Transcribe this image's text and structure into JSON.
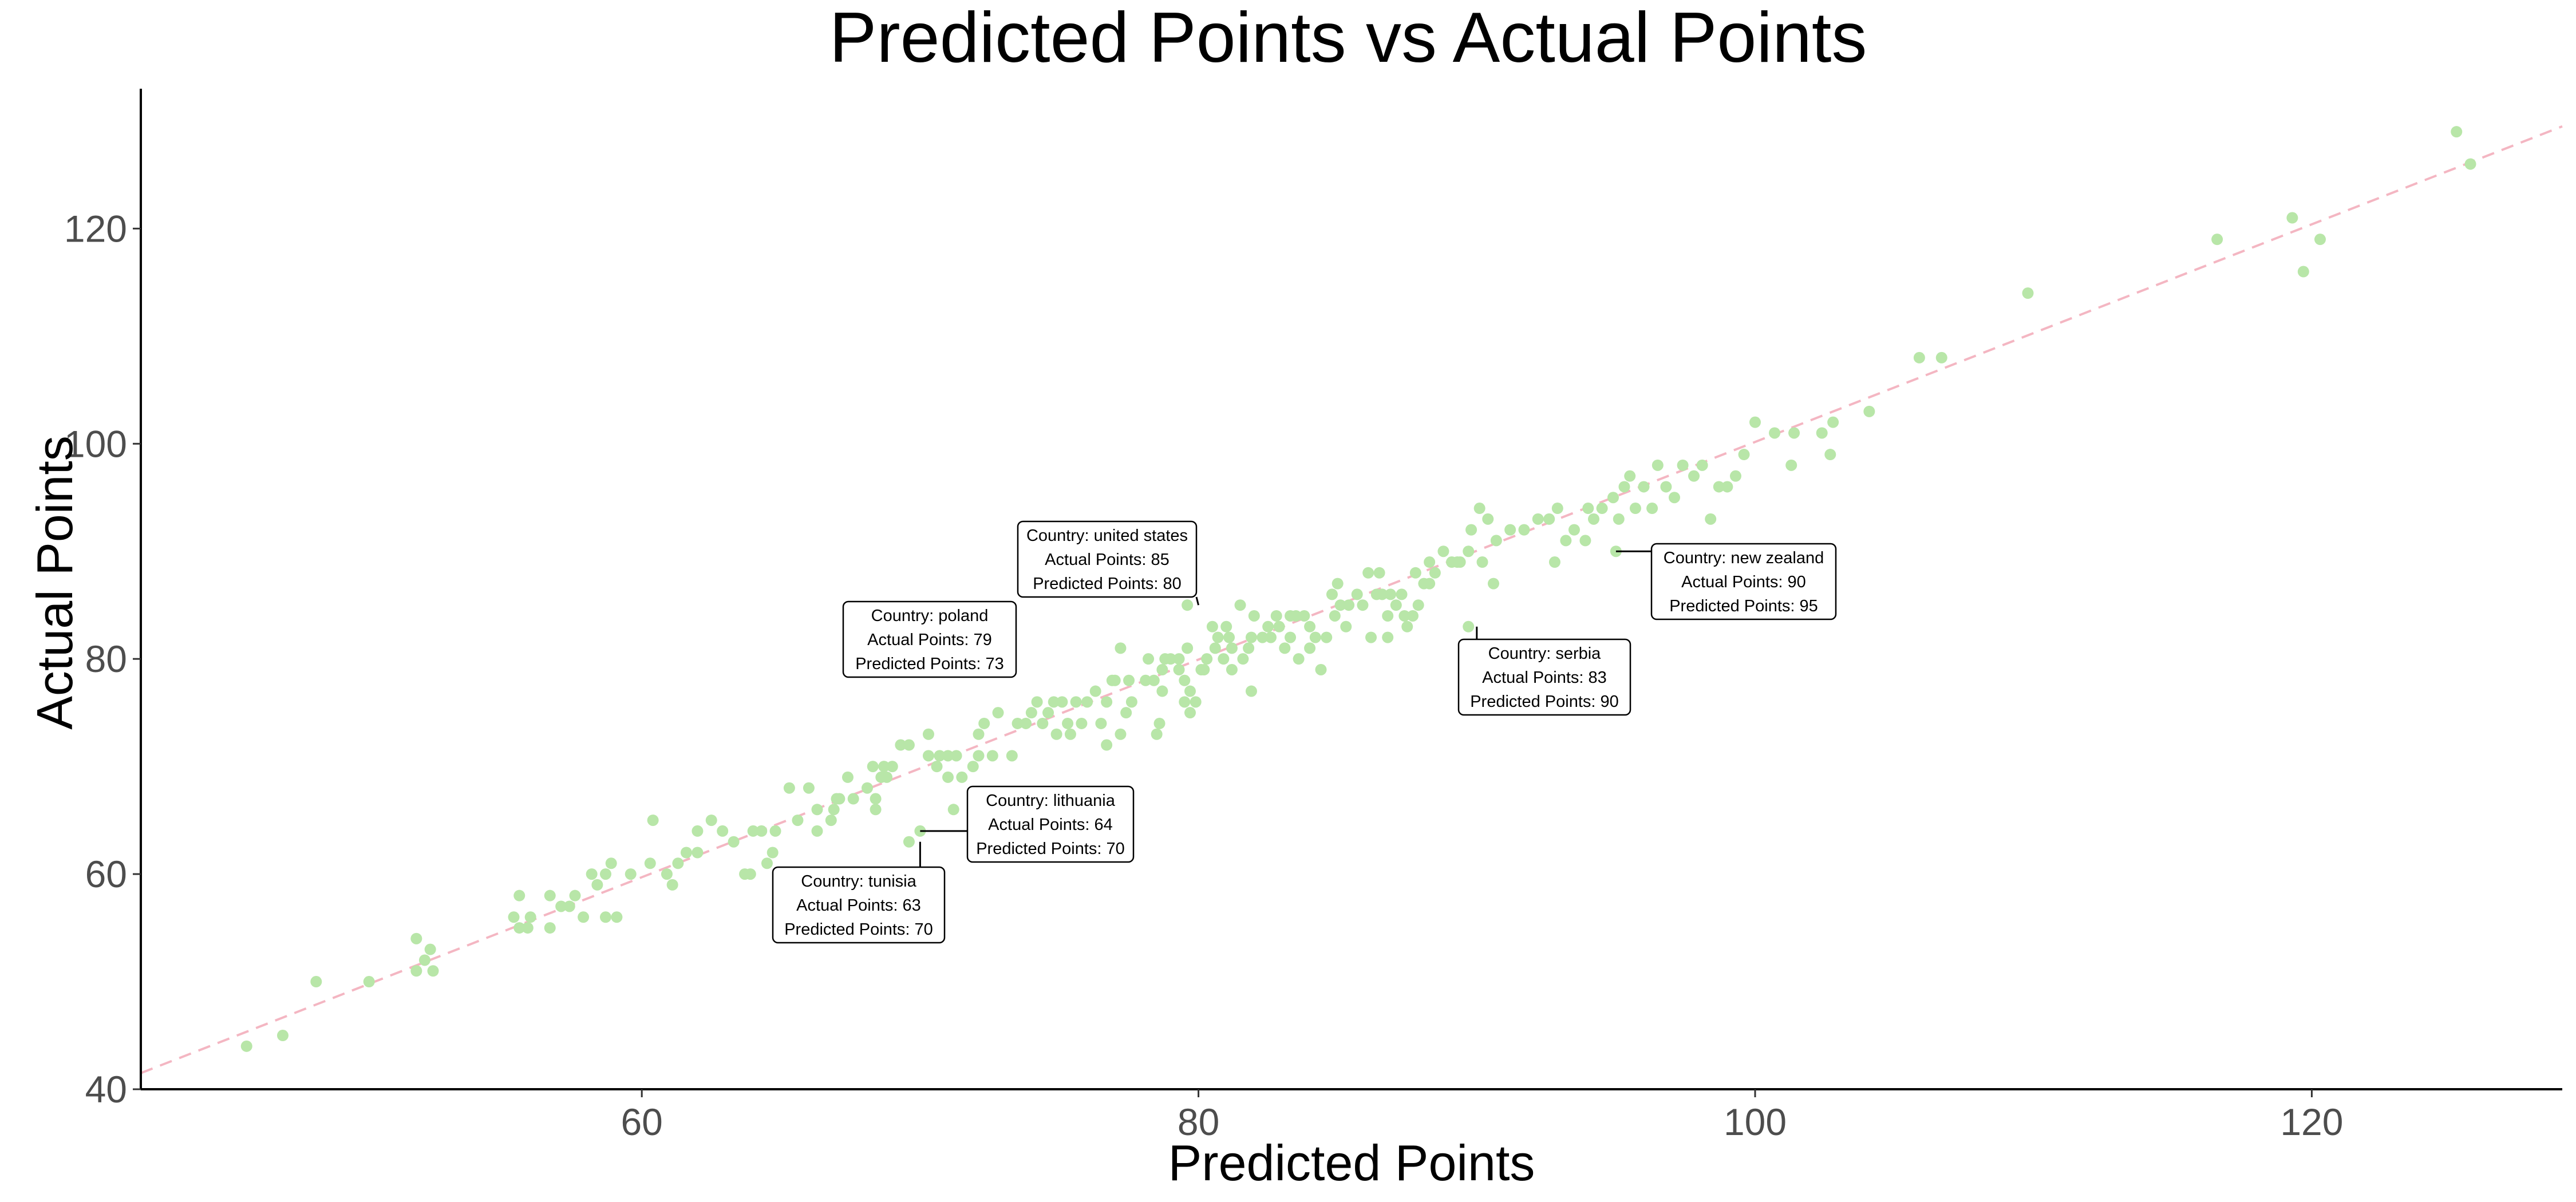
{
  "chart_data": {
    "type": "scatter",
    "title": "Predicted Points vs Actual Points",
    "xlabel": "Predicted Points",
    "ylabel": "Actual Points",
    "xlim": [
      42,
      129
    ],
    "ylim": [
      40,
      133
    ],
    "x_ticks": [
      60,
      80,
      100,
      120
    ],
    "y_ticks": [
      40,
      60,
      80,
      100,
      120
    ],
    "grid": false,
    "point_color": "#b8e6a8",
    "reference_line": {
      "style": "dashed",
      "color": "#f4b6c2",
      "x": [
        42,
        129
      ],
      "y": [
        41.5,
        129.5
      ]
    },
    "points": [
      [
        45.8,
        44
      ],
      [
        47.1,
        45
      ],
      [
        48.3,
        50
      ],
      [
        50.2,
        50
      ],
      [
        51.9,
        51
      ],
      [
        51.9,
        54
      ],
      [
        52.2,
        52
      ],
      [
        52.4,
        53
      ],
      [
        52.5,
        51
      ],
      [
        55.4,
        56
      ],
      [
        55.6,
        58
      ],
      [
        55.6,
        55
      ],
      [
        55.9,
        55
      ],
      [
        56,
        56
      ],
      [
        56.7,
        55
      ],
      [
        56.7,
        58
      ],
      [
        57.1,
        57
      ],
      [
        57.4,
        57
      ],
      [
        57.6,
        58
      ],
      [
        57.9,
        56
      ],
      [
        58.2,
        60
      ],
      [
        58.4,
        59
      ],
      [
        58.7,
        56
      ],
      [
        58.7,
        60
      ],
      [
        58.9,
        61
      ],
      [
        59.1,
        56
      ],
      [
        59.6,
        60
      ],
      [
        60.3,
        61
      ],
      [
        60.4,
        65
      ],
      [
        60.9,
        60
      ],
      [
        61.1,
        59
      ],
      [
        61.3,
        61
      ],
      [
        61.6,
        62
      ],
      [
        62,
        62
      ],
      [
        62,
        64
      ],
      [
        62.5,
        65
      ],
      [
        62.9,
        64
      ],
      [
        63.3,
        63
      ],
      [
        63.7,
        60
      ],
      [
        63.9,
        60
      ],
      [
        64,
        64
      ],
      [
        64.3,
        64
      ],
      [
        64.5,
        61
      ],
      [
        64.7,
        62
      ],
      [
        64.8,
        64
      ],
      [
        65.3,
        68
      ],
      [
        65.6,
        65
      ],
      [
        66,
        68
      ],
      [
        66.3,
        66
      ],
      [
        66.3,
        64
      ],
      [
        66.8,
        65
      ],
      [
        66.9,
        66
      ],
      [
        67,
        67
      ],
      [
        67.1,
        67
      ],
      [
        67.4,
        69
      ],
      [
        67.6,
        67
      ],
      [
        68.1,
        68
      ],
      [
        68.3,
        70
      ],
      [
        68.4,
        66
      ],
      [
        68.4,
        67
      ],
      [
        68.6,
        69
      ],
      [
        68.7,
        70
      ],
      [
        68.8,
        69
      ],
      [
        69,
        70
      ],
      [
        69.3,
        72
      ],
      [
        69.6,
        72
      ],
      [
        70.3,
        71
      ],
      [
        70.3,
        73
      ],
      [
        70.6,
        70
      ],
      [
        70.7,
        71
      ],
      [
        71,
        69
      ],
      [
        71,
        71
      ],
      [
        71.2,
        66
      ],
      [
        71.3,
        71
      ],
      [
        71.5,
        69
      ],
      [
        71.9,
        70
      ],
      [
        72.1,
        71
      ],
      [
        72.1,
        73
      ],
      [
        72.3,
        74
      ],
      [
        72.6,
        71
      ],
      [
        72.8,
        75
      ],
      [
        73.2,
        79
      ],
      [
        73.3,
        71
      ],
      [
        73.5,
        74
      ],
      [
        73.8,
        74
      ],
      [
        74,
        75
      ],
      [
        74.2,
        76
      ],
      [
        74.4,
        74
      ],
      [
        74.6,
        75
      ],
      [
        74.8,
        76
      ],
      [
        74.9,
        73
      ],
      [
        75.1,
        76
      ],
      [
        75.3,
        74
      ],
      [
        75.4,
        73
      ],
      [
        75.6,
        76
      ],
      [
        75.8,
        74
      ],
      [
        76,
        76
      ],
      [
        76.3,
        77
      ],
      [
        76.5,
        74
      ],
      [
        76.7,
        72
      ],
      [
        76.7,
        76
      ],
      [
        76.9,
        78
      ],
      [
        77,
        78
      ],
      [
        77.2,
        81
      ],
      [
        77.2,
        73
      ],
      [
        77.4,
        75
      ],
      [
        77.5,
        78
      ],
      [
        77.6,
        76
      ],
      [
        78.1,
        78
      ],
      [
        78.2,
        80
      ],
      [
        78.4,
        78
      ],
      [
        78.5,
        73
      ],
      [
        78.6,
        74
      ],
      [
        78.7,
        77
      ],
      [
        78.7,
        79
      ],
      [
        78.8,
        80
      ],
      [
        79,
        80
      ],
      [
        79.3,
        79
      ],
      [
        79.3,
        80
      ],
      [
        79.5,
        76
      ],
      [
        79.5,
        78
      ],
      [
        79.6,
        81
      ],
      [
        79.7,
        77
      ],
      [
        79.7,
        75
      ],
      [
        79.9,
        76
      ],
      [
        80.1,
        79
      ],
      [
        80.2,
        79
      ],
      [
        80.3,
        80
      ],
      [
        80.5,
        83
      ],
      [
        80.6,
        81
      ],
      [
        80.7,
        82
      ],
      [
        80.9,
        80
      ],
      [
        81,
        83
      ],
      [
        81.1,
        82
      ],
      [
        81.2,
        81
      ],
      [
        81.2,
        79
      ],
      [
        81.5,
        85
      ],
      [
        81.6,
        80
      ],
      [
        81.8,
        81
      ],
      [
        81.9,
        77
      ],
      [
        81.9,
        82
      ],
      [
        82,
        84
      ],
      [
        82.3,
        82
      ],
      [
        82.5,
        83
      ],
      [
        82.6,
        82
      ],
      [
        82.8,
        84
      ],
      [
        82.9,
        83
      ],
      [
        83.1,
        81
      ],
      [
        83.3,
        82
      ],
      [
        83.3,
        84
      ],
      [
        83.5,
        84
      ],
      [
        83.6,
        80
      ],
      [
        83.8,
        84
      ],
      [
        84,
        83
      ],
      [
        84,
        81
      ],
      [
        84.2,
        82
      ],
      [
        84.4,
        79
      ],
      [
        84.6,
        82
      ],
      [
        84.8,
        86
      ],
      [
        84.9,
        84
      ],
      [
        85,
        87
      ],
      [
        85.1,
        85
      ],
      [
        85.3,
        83
      ],
      [
        85.4,
        85
      ],
      [
        85.7,
        86
      ],
      [
        85.9,
        85
      ],
      [
        86.1,
        88
      ],
      [
        86.2,
        82
      ],
      [
        86.4,
        86
      ],
      [
        86.5,
        88
      ],
      [
        86.6,
        86
      ],
      [
        86.8,
        82
      ],
      [
        86.8,
        84
      ],
      [
        86.9,
        86
      ],
      [
        87.1,
        85
      ],
      [
        87.3,
        86
      ],
      [
        87.4,
        84
      ],
      [
        87.5,
        83
      ],
      [
        87.7,
        84
      ],
      [
        87.8,
        88
      ],
      [
        87.9,
        85
      ],
      [
        88.1,
        87
      ],
      [
        88.3,
        87
      ],
      [
        88.3,
        89
      ],
      [
        88.5,
        88
      ],
      [
        88.8,
        90
      ],
      [
        89.1,
        89
      ],
      [
        89.3,
        89
      ],
      [
        89.4,
        89
      ],
      [
        89.7,
        90
      ],
      [
        89.8,
        92
      ],
      [
        90.1,
        94
      ],
      [
        90.2,
        89
      ],
      [
        90.4,
        93
      ],
      [
        90.6,
        87
      ],
      [
        90.7,
        91
      ],
      [
        91.2,
        92
      ],
      [
        91.7,
        92
      ],
      [
        92.2,
        93
      ],
      [
        92.6,
        93
      ],
      [
        92.8,
        89
      ],
      [
        92.9,
        94
      ],
      [
        93.2,
        91
      ],
      [
        93.5,
        92
      ],
      [
        93.9,
        91
      ],
      [
        94,
        94
      ],
      [
        94.2,
        93
      ],
      [
        94.5,
        94
      ],
      [
        94.9,
        95
      ],
      [
        95.1,
        93
      ],
      [
        95.3,
        96
      ],
      [
        95.5,
        97
      ],
      [
        95.7,
        94
      ],
      [
        96,
        96
      ],
      [
        96.3,
        94
      ],
      [
        96.5,
        98
      ],
      [
        96.8,
        96
      ],
      [
        97.1,
        95
      ],
      [
        97.4,
        98
      ],
      [
        97.8,
        97
      ],
      [
        98.1,
        98
      ],
      [
        98.4,
        93
      ],
      [
        98.7,
        96
      ],
      [
        99,
        96
      ],
      [
        99.3,
        97
      ],
      [
        99.6,
        99
      ],
      [
        100,
        102
      ],
      [
        100.7,
        101
      ],
      [
        101.3,
        98
      ],
      [
        101.4,
        101
      ],
      [
        102.4,
        101
      ],
      [
        102.7,
        99
      ],
      [
        102.8,
        102
      ],
      [
        104.1,
        103
      ],
      [
        105.9,
        108
      ],
      [
        106.7,
        108
      ],
      [
        109.8,
        114
      ],
      [
        116.6,
        119
      ],
      [
        119.3,
        121
      ],
      [
        119.7,
        116
      ],
      [
        120.3,
        119
      ],
      [
        125.2,
        129
      ],
      [
        125.7,
        126
      ],
      [
        70,
        64
      ],
      [
        69.6,
        63
      ],
      [
        72.8,
        79
      ],
      [
        79.6,
        85
      ],
      [
        89.7,
        83
      ],
      [
        95,
        90
      ]
    ],
    "annotations": [
      {
        "country": "tunisia",
        "actual": 63,
        "predicted": 70,
        "lines": [
          "Country: tunisia",
          "Actual Points: 63",
          "Predicted Points: 70"
        ]
      },
      {
        "country": "lithuania",
        "actual": 64,
        "predicted": 70,
        "lines": [
          "Country: lithuania",
          "Actual Points: 64",
          "Predicted Points: 70"
        ]
      },
      {
        "country": "poland",
        "actual": 79,
        "predicted": 73,
        "lines": [
          "Country: poland",
          "Actual Points: 79",
          "Predicted Points: 73"
        ]
      },
      {
        "country": "united states",
        "actual": 85,
        "predicted": 80,
        "lines": [
          "Country: united states",
          "Actual Points: 85",
          "Predicted Points: 80"
        ]
      },
      {
        "country": "serbia",
        "actual": 83,
        "predicted": 90,
        "lines": [
          "Country: serbia",
          "Actual Points: 83",
          "Predicted Points: 90"
        ]
      },
      {
        "country": "new zealand",
        "actual": 90,
        "predicted": 95,
        "lines": [
          "Country: new zealand",
          "Actual Points: 90",
          "Predicted Points: 95"
        ]
      }
    ]
  }
}
